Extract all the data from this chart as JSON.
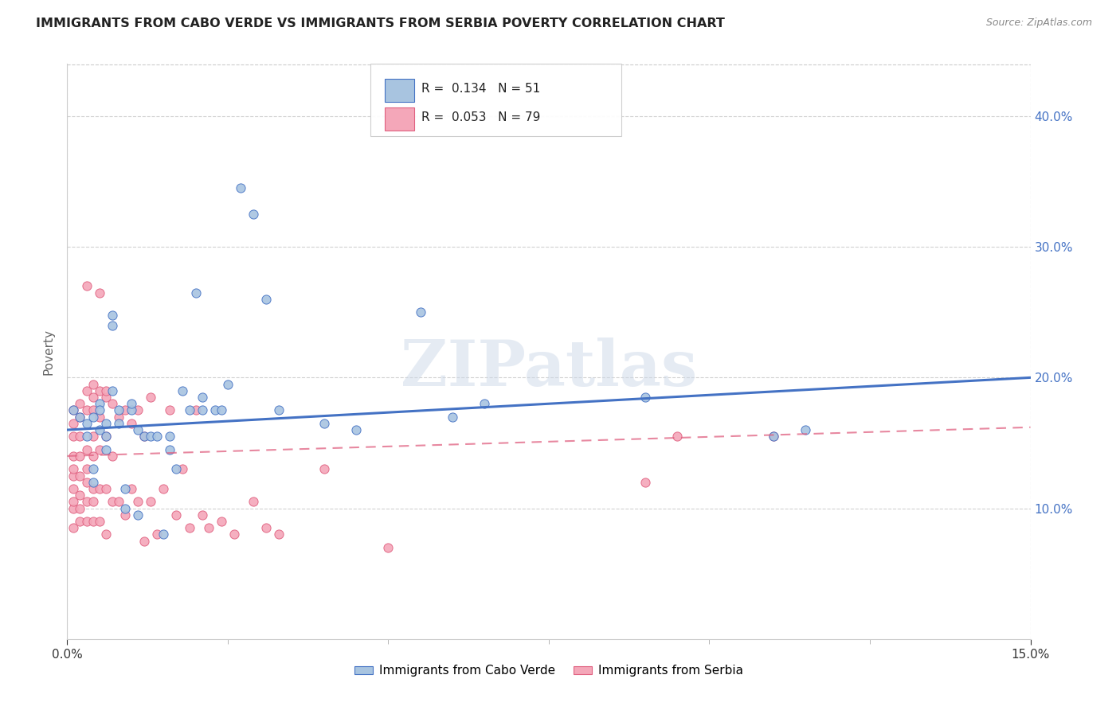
{
  "title": "IMMIGRANTS FROM CABO VERDE VS IMMIGRANTS FROM SERBIA POVERTY CORRELATION CHART",
  "source": "Source: ZipAtlas.com",
  "ylabel": "Poverty",
  "xlim": [
    0.0,
    0.15
  ],
  "ylim": [
    0.0,
    0.44
  ],
  "yticks_right": [
    0.1,
    0.2,
    0.3,
    0.4
  ],
  "r_cabo": 0.134,
  "n_cabo": 51,
  "r_serbia": 0.053,
  "n_serbia": 79,
  "legend_label_cabo": "Immigrants from Cabo Verde",
  "legend_label_serbia": "Immigrants from Serbia",
  "color_cabo": "#a8c4e0",
  "color_serbia": "#f4a7b9",
  "line_color_cabo": "#4472c4",
  "line_color_serbia": "#e06080",
  "watermark_text": "ZIPatlas",
  "cabo_verde_points": [
    [
      0.001,
      0.175
    ],
    [
      0.002,
      0.17
    ],
    [
      0.003,
      0.165
    ],
    [
      0.003,
      0.155
    ],
    [
      0.004,
      0.17
    ],
    [
      0.004,
      0.13
    ],
    [
      0.004,
      0.12
    ],
    [
      0.005,
      0.18
    ],
    [
      0.005,
      0.16
    ],
    [
      0.005,
      0.175
    ],
    [
      0.006,
      0.165
    ],
    [
      0.006,
      0.155
    ],
    [
      0.006,
      0.145
    ],
    [
      0.007,
      0.19
    ],
    [
      0.007,
      0.24
    ],
    [
      0.007,
      0.248
    ],
    [
      0.008,
      0.175
    ],
    [
      0.008,
      0.165
    ],
    [
      0.009,
      0.115
    ],
    [
      0.009,
      0.1
    ],
    [
      0.01,
      0.175
    ],
    [
      0.01,
      0.18
    ],
    [
      0.011,
      0.16
    ],
    [
      0.011,
      0.095
    ],
    [
      0.012,
      0.155
    ],
    [
      0.013,
      0.155
    ],
    [
      0.014,
      0.155
    ],
    [
      0.015,
      0.08
    ],
    [
      0.016,
      0.155
    ],
    [
      0.016,
      0.145
    ],
    [
      0.017,
      0.13
    ],
    [
      0.018,
      0.19
    ],
    [
      0.019,
      0.175
    ],
    [
      0.02,
      0.265
    ],
    [
      0.021,
      0.175
    ],
    [
      0.021,
      0.185
    ],
    [
      0.023,
      0.175
    ],
    [
      0.024,
      0.175
    ],
    [
      0.025,
      0.195
    ],
    [
      0.027,
      0.345
    ],
    [
      0.029,
      0.325
    ],
    [
      0.031,
      0.26
    ],
    [
      0.033,
      0.175
    ],
    [
      0.04,
      0.165
    ],
    [
      0.045,
      0.16
    ],
    [
      0.055,
      0.25
    ],
    [
      0.06,
      0.17
    ],
    [
      0.065,
      0.18
    ],
    [
      0.09,
      0.185
    ],
    [
      0.11,
      0.155
    ],
    [
      0.115,
      0.16
    ]
  ],
  "serbia_points": [
    [
      0.001,
      0.085
    ],
    [
      0.001,
      0.1
    ],
    [
      0.001,
      0.105
    ],
    [
      0.001,
      0.115
    ],
    [
      0.001,
      0.125
    ],
    [
      0.001,
      0.13
    ],
    [
      0.001,
      0.14
    ],
    [
      0.001,
      0.155
    ],
    [
      0.001,
      0.165
    ],
    [
      0.001,
      0.175
    ],
    [
      0.002,
      0.09
    ],
    [
      0.002,
      0.1
    ],
    [
      0.002,
      0.11
    ],
    [
      0.002,
      0.125
    ],
    [
      0.002,
      0.14
    ],
    [
      0.002,
      0.155
    ],
    [
      0.002,
      0.17
    ],
    [
      0.002,
      0.18
    ],
    [
      0.003,
      0.09
    ],
    [
      0.003,
      0.105
    ],
    [
      0.003,
      0.12
    ],
    [
      0.003,
      0.13
    ],
    [
      0.003,
      0.145
    ],
    [
      0.003,
      0.175
    ],
    [
      0.003,
      0.19
    ],
    [
      0.003,
      0.27
    ],
    [
      0.004,
      0.09
    ],
    [
      0.004,
      0.105
    ],
    [
      0.004,
      0.115
    ],
    [
      0.004,
      0.14
    ],
    [
      0.004,
      0.155
    ],
    [
      0.004,
      0.175
    ],
    [
      0.004,
      0.185
    ],
    [
      0.004,
      0.195
    ],
    [
      0.005,
      0.09
    ],
    [
      0.005,
      0.115
    ],
    [
      0.005,
      0.145
    ],
    [
      0.005,
      0.17
    ],
    [
      0.005,
      0.19
    ],
    [
      0.005,
      0.265
    ],
    [
      0.006,
      0.08
    ],
    [
      0.006,
      0.115
    ],
    [
      0.006,
      0.155
    ],
    [
      0.006,
      0.185
    ],
    [
      0.006,
      0.19
    ],
    [
      0.007,
      0.105
    ],
    [
      0.007,
      0.14
    ],
    [
      0.007,
      0.18
    ],
    [
      0.008,
      0.105
    ],
    [
      0.008,
      0.17
    ],
    [
      0.009,
      0.095
    ],
    [
      0.009,
      0.175
    ],
    [
      0.01,
      0.115
    ],
    [
      0.01,
      0.165
    ],
    [
      0.011,
      0.105
    ],
    [
      0.011,
      0.175
    ],
    [
      0.012,
      0.075
    ],
    [
      0.012,
      0.155
    ],
    [
      0.013,
      0.105
    ],
    [
      0.013,
      0.185
    ],
    [
      0.014,
      0.08
    ],
    [
      0.015,
      0.115
    ],
    [
      0.016,
      0.175
    ],
    [
      0.017,
      0.095
    ],
    [
      0.018,
      0.13
    ],
    [
      0.019,
      0.085
    ],
    [
      0.02,
      0.175
    ],
    [
      0.021,
      0.095
    ],
    [
      0.022,
      0.085
    ],
    [
      0.024,
      0.09
    ],
    [
      0.026,
      0.08
    ],
    [
      0.029,
      0.105
    ],
    [
      0.031,
      0.085
    ],
    [
      0.033,
      0.08
    ],
    [
      0.04,
      0.13
    ],
    [
      0.05,
      0.07
    ],
    [
      0.09,
      0.12
    ],
    [
      0.095,
      0.155
    ],
    [
      0.11,
      0.155
    ]
  ]
}
